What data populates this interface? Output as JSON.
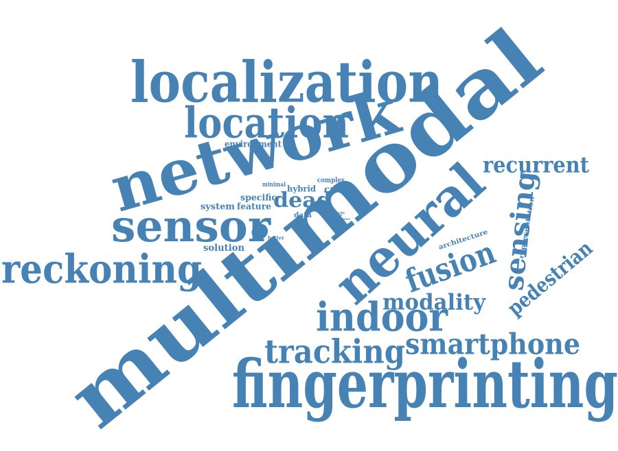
{
  "word_cloud": {
    "color": "#4682b4",
    "words": [
      {
        "text": "multimodal"
      },
      {
        "text": "fingerprinting"
      },
      {
        "text": "localization"
      },
      {
        "text": "network"
      },
      {
        "text": "location"
      },
      {
        "text": "neural"
      },
      {
        "text": "sensor"
      },
      {
        "text": "reckoning"
      },
      {
        "text": "indoor"
      },
      {
        "text": "tracking"
      },
      {
        "text": "smartphone"
      },
      {
        "text": "fusion"
      },
      {
        "text": "sensing"
      },
      {
        "text": "recurrent"
      },
      {
        "text": "modality"
      },
      {
        "text": "pedestrian"
      },
      {
        "text": "dead"
      },
      {
        "text": "environment"
      },
      {
        "text": "specific"
      },
      {
        "text": "hybrid"
      },
      {
        "text": "cross"
      },
      {
        "text": "system"
      },
      {
        "text": "feature"
      },
      {
        "text": "data"
      },
      {
        "text": "solution"
      },
      {
        "text": "complex"
      },
      {
        "text": "minimal"
      },
      {
        "text": "better"
      },
      {
        "text": "architecture"
      },
      {
        "text": "representation"
      },
      {
        "text": "train"
      },
      {
        "text": "more"
      },
      {
        "text": "ex"
      }
    ]
  }
}
